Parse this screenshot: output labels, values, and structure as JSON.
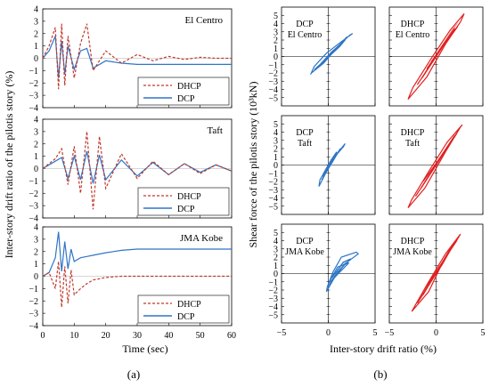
{
  "chart_data": [
    {
      "type": "line",
      "title": "El Centro",
      "x": [
        0,
        2,
        4,
        5,
        6,
        7,
        8,
        10,
        12,
        14,
        16,
        20,
        25,
        30,
        35,
        40,
        45,
        50,
        55,
        60
      ],
      "xlim": [
        0,
        60
      ],
      "ylim": [
        -4,
        4
      ],
      "series": [
        {
          "name": "DHCP",
          "color": "#c0392b",
          "dash": true,
          "values": [
            0,
            1.0,
            2.5,
            -2.5,
            2.8,
            -2.2,
            1.8,
            -1.6,
            1.2,
            2.8,
            -1.0,
            0.6,
            -0.4,
            0.3,
            -0.2,
            0.15,
            -0.1,
            0.08,
            0.0,
            0.0
          ]
        },
        {
          "name": "DCP",
          "color": "#2e75c7",
          "dash": false,
          "values": [
            0,
            0.6,
            1.8,
            -1.6,
            1.4,
            -1.3,
            1.0,
            -0.9,
            0.6,
            0.8,
            -0.8,
            -0.2,
            -0.4,
            -0.5,
            -0.5,
            -0.5,
            -0.5,
            -0.5,
            -0.5,
            -0.5
          ]
        }
      ],
      "legend": [
        "DHCP",
        "DCP"
      ],
      "legend_position": "bottom-right"
    },
    {
      "type": "line",
      "title": "Taft",
      "x": [
        0,
        2,
        4,
        6,
        8,
        10,
        12,
        14,
        16,
        18,
        20,
        25,
        30,
        35,
        40,
        45,
        50,
        55,
        60
      ],
      "xlim": [
        0,
        60
      ],
      "ylim": [
        -4,
        4
      ],
      "series": [
        {
          "name": "DHCP",
          "color": "#c0392b",
          "dash": true,
          "values": [
            0,
            0.4,
            0.8,
            1.6,
            -1.3,
            1.8,
            -2.0,
            3.0,
            -3.3,
            2.6,
            -1.6,
            1.2,
            -0.8,
            0.6,
            -0.5,
            0.4,
            -0.4,
            0.3,
            -0.2
          ]
        },
        {
          "name": "DCP",
          "color": "#2e75c7",
          "dash": false,
          "values": [
            0,
            0.3,
            0.6,
            0.9,
            -0.8,
            1.0,
            -0.9,
            1.4,
            -1.2,
            1.1,
            -0.9,
            0.7,
            -0.6,
            0.5,
            -0.5,
            0.4,
            -0.3,
            0.3,
            -0.2
          ]
        }
      ],
      "legend": [
        "DHCP",
        "DCP"
      ],
      "legend_position": "bottom-right"
    },
    {
      "type": "line",
      "title": "JMA Kobe",
      "x": [
        0,
        2,
        4,
        5,
        6,
        7,
        8,
        9,
        10,
        12,
        14,
        16,
        20,
        25,
        30,
        35,
        40,
        45,
        50,
        55,
        60
      ],
      "xlim": [
        0,
        60
      ],
      "ylim": [
        -4,
        4
      ],
      "series": [
        {
          "name": "DHCP",
          "color": "#c0392b",
          "dash": true,
          "values": [
            0,
            0.3,
            -1.0,
            1.2,
            -2.5,
            0.8,
            -2.2,
            0.5,
            -1.5,
            -1.0,
            -0.6,
            -0.3,
            -0.1,
            0.0,
            0.0,
            0.0,
            0.0,
            0.0,
            0.0,
            0.0,
            0.0
          ]
        },
        {
          "name": "DCP",
          "color": "#2e75c7",
          "dash": false,
          "values": [
            0,
            0.3,
            1.5,
            3.6,
            0.4,
            2.8,
            0.6,
            2.2,
            1.2,
            1.5,
            1.6,
            1.7,
            1.9,
            2.1,
            2.2,
            2.2,
            2.2,
            2.2,
            2.2,
            2.2,
            2.2
          ]
        }
      ],
      "legend": [
        "DHCP",
        "DCP"
      ],
      "legend_position": "bottom-right"
    },
    {
      "type": "scatter",
      "title": "DCP El Centro",
      "xlim": [
        -5,
        5
      ],
      "ylim": [
        -6,
        6
      ],
      "color": "#2e75c7",
      "loops": [
        [
          [
            -1.8,
            -2.0
          ],
          [
            -0.5,
            -0.8
          ],
          [
            1.0,
            1.2
          ],
          [
            2.3,
            2.6
          ],
          [
            2.6,
            2.8
          ],
          [
            1.4,
            1.8
          ],
          [
            -0.2,
            0.4
          ],
          [
            -1.5,
            -1.2
          ],
          [
            -1.9,
            -2.2
          ]
        ],
        [
          [
            -1.3,
            -1.5
          ],
          [
            0.3,
            0.5
          ],
          [
            1.8,
            2.0
          ],
          [
            1.2,
            1.2
          ],
          [
            -0.5,
            -0.6
          ],
          [
            -1.5,
            -1.6
          ]
        ],
        [
          [
            -0.9,
            -1.0
          ],
          [
            0.9,
            1.0
          ],
          [
            2.0,
            2.4
          ],
          [
            -0.2,
            -0.4
          ],
          [
            -1.2,
            -1.3
          ]
        ]
      ]
    },
    {
      "type": "scatter",
      "title": "DHCP El Centro",
      "xlim": [
        -5,
        5
      ],
      "ylim": [
        -6,
        6
      ],
      "color": "#e02020",
      "loops": [
        [
          [
            -3.0,
            -5.2
          ],
          [
            -1.0,
            -2.5
          ],
          [
            1.0,
            1.5
          ],
          [
            2.6,
            4.2
          ],
          [
            3.0,
            5.2
          ],
          [
            1.5,
            3.2
          ],
          [
            -0.5,
            -0.2
          ],
          [
            -2.5,
            -3.8
          ],
          [
            -3.0,
            -5.2
          ]
        ],
        [
          [
            -2.0,
            -3.4
          ],
          [
            0.0,
            0.0
          ],
          [
            2.0,
            3.4
          ],
          [
            0.8,
            1.5
          ],
          [
            -1.0,
            -1.5
          ]
        ],
        [
          [
            -1.5,
            -2.6
          ],
          [
            1.5,
            2.6
          ],
          [
            2.3,
            3.6
          ],
          [
            -0.5,
            -0.6
          ]
        ]
      ]
    },
    {
      "type": "scatter",
      "title": "DCP Taft",
      "xlim": [
        -5,
        5
      ],
      "ylim": [
        -6,
        6
      ],
      "color": "#2e75c7",
      "loops": [
        [
          [
            -1.0,
            -2.6
          ],
          [
            -0.3,
            -1.0
          ],
          [
            0.8,
            1.2
          ],
          [
            1.8,
            2.6
          ],
          [
            1.6,
            2.2
          ],
          [
            0.2,
            0.4
          ],
          [
            -0.9,
            -1.8
          ],
          [
            -1.0,
            -2.6
          ]
        ],
        [
          [
            -0.7,
            -1.8
          ],
          [
            0.5,
            0.5
          ],
          [
            1.3,
            2.0
          ],
          [
            0.0,
            -0.2
          ],
          [
            -0.6,
            -1.4
          ]
        ],
        [
          [
            -0.4,
            -1.2
          ],
          [
            0.9,
            1.6
          ],
          [
            0.3,
            0.6
          ],
          [
            -0.5,
            -1.0
          ]
        ]
      ]
    },
    {
      "type": "scatter",
      "title": "DHCP Taft",
      "xlim": [
        -5,
        5
      ],
      "ylim": [
        -6,
        6
      ],
      "color": "#e02020",
      "loops": [
        [
          [
            -3.0,
            -5.2
          ],
          [
            -1.2,
            -2.8
          ],
          [
            1.0,
            1.6
          ],
          [
            2.6,
            4.6
          ],
          [
            2.8,
            4.9
          ],
          [
            1.2,
            2.8
          ],
          [
            -0.8,
            -0.8
          ],
          [
            -2.6,
            -4.2
          ],
          [
            -3.0,
            -5.2
          ]
        ],
        [
          [
            -2.2,
            -3.8
          ],
          [
            0.0,
            0.0
          ],
          [
            2.0,
            3.6
          ],
          [
            0.5,
            1.0
          ],
          [
            -1.4,
            -2.0
          ]
        ],
        [
          [
            -1.6,
            -2.8
          ],
          [
            1.6,
            2.8
          ],
          [
            2.2,
            3.8
          ],
          [
            -0.6,
            -0.8
          ]
        ]
      ]
    },
    {
      "type": "scatter",
      "title": "DCP JMA Kobe",
      "xlim": [
        -5,
        5
      ],
      "ylim": [
        -6,
        6
      ],
      "color": "#2e75c7",
      "loops": [
        [
          [
            -0.2,
            -2.2
          ],
          [
            0.6,
            -0.6
          ],
          [
            1.8,
            1.2
          ],
          [
            3.2,
            2.4
          ],
          [
            3.0,
            2.6
          ],
          [
            1.4,
            2.0
          ],
          [
            0.5,
            0.2
          ],
          [
            -0.1,
            -1.6
          ],
          [
            -0.2,
            -2.2
          ]
        ],
        [
          [
            0.0,
            -1.5
          ],
          [
            1.0,
            0.2
          ],
          [
            2.4,
            1.8
          ],
          [
            1.6,
            1.4
          ],
          [
            0.4,
            -0.5
          ]
        ],
        [
          [
            0.2,
            -1.0
          ],
          [
            2.2,
            1.3
          ],
          [
            1.0,
            0.8
          ],
          [
            0.0,
            -1.2
          ]
        ]
      ]
    },
    {
      "type": "scatter",
      "title": "DHCP JMA Kobe",
      "xlim": [
        -5,
        5
      ],
      "ylim": [
        -6,
        6
      ],
      "color": "#e02020",
      "loops": [
        [
          [
            -2.6,
            -4.6
          ],
          [
            -0.8,
            -2.2
          ],
          [
            0.8,
            1.6
          ],
          [
            2.4,
            4.4
          ],
          [
            2.6,
            4.8
          ],
          [
            1.0,
            2.4
          ],
          [
            -0.8,
            -1.0
          ],
          [
            -2.2,
            -3.8
          ],
          [
            -2.6,
            -4.6
          ]
        ],
        [
          [
            -2.0,
            -3.6
          ],
          [
            0.0,
            0.0
          ],
          [
            2.0,
            3.8
          ],
          [
            0.6,
            1.0
          ],
          [
            -1.2,
            -1.8
          ]
        ],
        [
          [
            -1.4,
            -2.6
          ],
          [
            1.4,
            2.8
          ],
          [
            2.2,
            4.0
          ],
          [
            -0.5,
            -0.6
          ]
        ]
      ]
    }
  ],
  "labels": {
    "left_ylabel": "Inter-story drift ratio of the pilotis story (%)",
    "left_xlabel": "Time (sec)",
    "right_ylabel": "Shear force of the pilotis story (10³kN)",
    "right_xlabel": "Inter-story drift ratio (%)",
    "panel_a": "(a)",
    "panel_b": "(b)",
    "left_yticks": [
      "4",
      "3",
      "2",
      "1",
      "0",
      "−1",
      "−2",
      "−3",
      "−4"
    ],
    "left_xticks": [
      "0",
      "10",
      "20",
      "30",
      "40",
      "50",
      "60"
    ],
    "right_yticks": [
      "5",
      "4",
      "3",
      "2",
      "1",
      "0",
      "−1",
      "−2",
      "−3",
      "−4",
      "−5"
    ],
    "right_xticks": [
      "−5",
      "0",
      "5"
    ],
    "hyst_labels": [
      [
        "DCP",
        "El Centro"
      ],
      [
        "DHCP",
        "El Centro"
      ],
      [
        "DCP",
        "Taft"
      ],
      [
        "DHCP",
        "Taft"
      ],
      [
        "DCP",
        "JMA Kobe"
      ],
      [
        "DHCP",
        "JMA Kobe"
      ]
    ],
    "legend_dhcp": "DHCP",
    "legend_dcp": "DCP"
  }
}
